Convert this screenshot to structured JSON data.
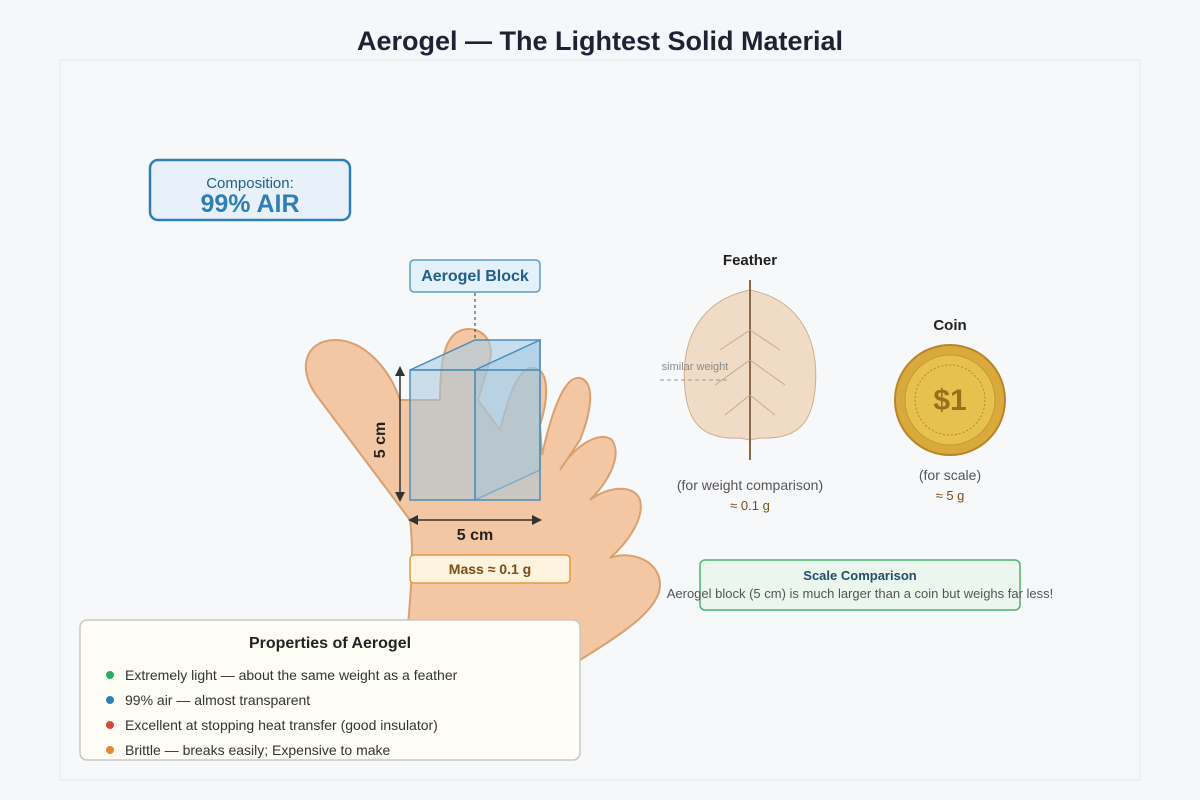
{
  "title": "Aerogel — The Lightest Solid Material",
  "composition": {
    "label": "Composition:",
    "value": "99% AIR"
  },
  "block": {
    "label": "Aerogel Block",
    "height": "5 cm",
    "width": "5 cm",
    "mass": "Mass ≈ 0.1 g"
  },
  "feather": {
    "title": "Feather",
    "note": "similar weight",
    "caption": "(for weight comparison)",
    "mass": "≈ 0.1 g"
  },
  "coin": {
    "title": "Coin",
    "face": "$1",
    "caption": "(for scale)",
    "mass": "≈ 5 g"
  },
  "comparison": {
    "title": "Scale Comparison",
    "text": "Aerogel block (5 cm) is much larger than a coin but weighs far less!"
  },
  "properties": {
    "title": "Properties of Aerogel",
    "items": [
      "Extremely light — about the same weight as a feather",
      "99% air — almost transparent",
      "Excellent at stopping heat transfer (good insulator)",
      "Brittle — breaks easily; Expensive to make"
    ]
  }
}
